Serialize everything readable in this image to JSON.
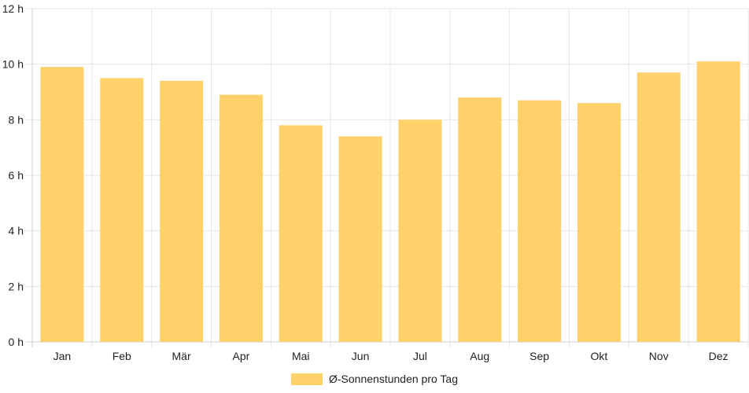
{
  "chart_data": {
    "type": "bar",
    "categories": [
      "Jan",
      "Feb",
      "Mär",
      "Apr",
      "Mai",
      "Jun",
      "Jul",
      "Aug",
      "Sep",
      "Okt",
      "Nov",
      "Dez"
    ],
    "series": [
      {
        "name": "Ø-Sonnenstunden pro Tag",
        "values": [
          9.9,
          9.5,
          9.4,
          8.9,
          7.8,
          7.4,
          8.0,
          8.8,
          8.7,
          8.6,
          9.7,
          10.1
        ],
        "color": "#fed16a"
      }
    ],
    "y_ticks": [
      "0 h",
      "2 h",
      "4 h",
      "6 h",
      "8 h",
      "10 h",
      "12 h"
    ],
    "ylim": [
      0,
      12
    ],
    "grid": true,
    "legend_position": "bottom"
  }
}
